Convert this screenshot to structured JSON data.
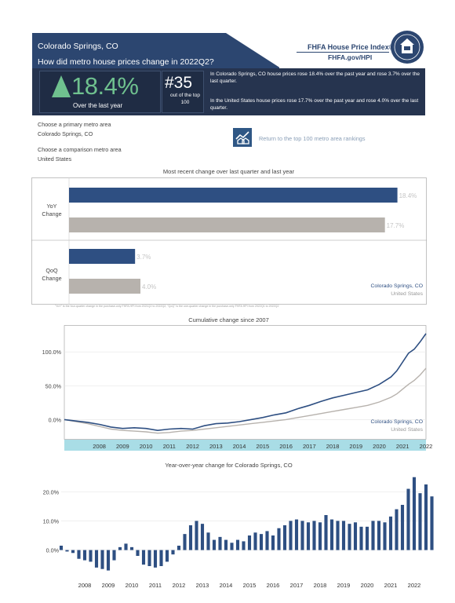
{
  "header": {
    "metro": "Colorado Springs, CO",
    "question": "How did metro house prices change in 2022Q2?"
  },
  "brand": {
    "title": "FHFA House Price Index®",
    "url": "FHFA.gov/HPI",
    "seal_icon": "fhfa-seal-icon"
  },
  "summary": {
    "yoy_value": "18.4%",
    "yoy_label": "Over the last year",
    "rank_value": "#35",
    "rank_label": "out of the top 100",
    "metro_text": "In Colorado Springs, CO house prices rose 18.4% over the past year and rose 3.7% over the last quarter.",
    "us_text": "In the United States house prices rose 17.7% over the past year and rose 4.0% over the last quarter."
  },
  "selectors": {
    "primary_label": "Choose a primary metro area",
    "primary_value": "Colorado Springs, CO",
    "comparison_label": "Choose a comparison metro area",
    "comparison_value": "United States",
    "return_link": "Return to the top 100 metro area rankings",
    "return_icon": "house-chart-icon"
  },
  "colors": {
    "primary": "#2e4f82",
    "comparison": "#b7b2ad",
    "axis_band": "#a9dde6",
    "header": "#2c4670"
  },
  "chart_data": [
    {
      "type": "bar",
      "title": "Most recent change over last quarter and last year",
      "categories": [
        "YoY Change",
        "QoQ Change"
      ],
      "series": [
        {
          "name": "Colorado Springs, CO",
          "values": [
            18.4,
            3.7
          ]
        },
        {
          "name": "United States",
          "values": [
            17.7,
            4.0
          ]
        }
      ],
      "value_labels": [
        [
          "18.4%",
          "3.7%"
        ],
        [
          "17.7%",
          "4.0%"
        ]
      ],
      "xlim": [
        0,
        20
      ],
      "legend": "bottom-right",
      "footnote": "\"YoY\" is the four-quarter change in the purchase-only FHFA HPI from 2021Q2 to 2022Q2; \"QoQ\" is the one-quarter change in the purchase-only FHFA HPI from 2022Q1 to 2022Q2"
    },
    {
      "type": "line",
      "title": "Cumulative change since 2007",
      "x_ticks": [
        "2008",
        "2009",
        "2010",
        "2011",
        "2012",
        "2013",
        "2014",
        "2015",
        "2016",
        "2017",
        "2018",
        "2019",
        "2020",
        "2021",
        "2022"
      ],
      "y_ticks": [
        "0.0%",
        "50.0%",
        "100.0%"
      ],
      "ylim": [
        -25,
        135
      ],
      "xlim": [
        2007.0,
        2022.5
      ],
      "legend": "bottom-right",
      "series": [
        {
          "name": "Colorado Springs, CO",
          "x": [
            2007.0,
            2007.5,
            2008.0,
            2008.5,
            2009.0,
            2009.5,
            2010.0,
            2010.5,
            2011.0,
            2011.5,
            2012.0,
            2012.5,
            2013.0,
            2013.5,
            2014.0,
            2014.5,
            2015.0,
            2015.5,
            2016.0,
            2016.5,
            2017.0,
            2017.5,
            2018.0,
            2018.5,
            2019.0,
            2019.5,
            2020.0,
            2020.5,
            2021.0,
            2021.25,
            2021.5,
            2021.75,
            2022.0,
            2022.25,
            2022.5
          ],
          "y": [
            0,
            -2,
            -4,
            -7,
            -11,
            -13,
            -12,
            -13,
            -16,
            -14,
            -13,
            -14,
            -9,
            -6,
            -5,
            -3,
            0,
            3,
            7,
            10,
            16,
            21,
            27,
            32,
            36,
            40,
            44,
            52,
            63,
            72,
            85,
            98,
            104,
            115,
            127
          ]
        },
        {
          "name": "United States",
          "x": [
            2007.0,
            2007.5,
            2008.0,
            2008.5,
            2009.0,
            2009.5,
            2010.0,
            2010.5,
            2011.0,
            2011.5,
            2012.0,
            2012.5,
            2013.0,
            2013.5,
            2014.0,
            2014.5,
            2015.0,
            2015.5,
            2016.0,
            2016.5,
            2017.0,
            2017.5,
            2018.0,
            2018.5,
            2019.0,
            2019.5,
            2020.0,
            2020.5,
            2021.0,
            2021.25,
            2021.5,
            2021.75,
            2022.0,
            2022.25,
            2022.5
          ],
          "y": [
            0,
            -3,
            -6,
            -10,
            -14,
            -16,
            -17,
            -18,
            -20,
            -19,
            -17,
            -16,
            -14,
            -12,
            -10,
            -8,
            -6,
            -4,
            -2,
            0,
            3,
            6,
            9,
            12,
            15,
            18,
            21,
            26,
            33,
            38,
            45,
            52,
            58,
            66,
            76
          ]
        }
      ]
    },
    {
      "type": "bar",
      "title": "Year-over-year change for Colorado Springs, CO",
      "x_ticks": [
        "2008",
        "2009",
        "2010",
        "2011",
        "2012",
        "2013",
        "2014",
        "2015",
        "2016",
        "2017",
        "2018",
        "2019",
        "2020",
        "2021",
        "2022"
      ],
      "y_ticks": [
        "0.0%",
        "10.0%",
        "20.0%"
      ],
      "ylim": [
        -9,
        26
      ],
      "series": [
        {
          "name": "Colorado Springs, CO",
          "start_year": 2007.5,
          "values": [
            1.5,
            -0.5,
            -1,
            -3,
            -3.5,
            -4,
            -6,
            -6.5,
            -7,
            -3.5,
            1,
            2.2,
            1,
            -2,
            -5,
            -5.5,
            -6,
            -5.5,
            -4,
            -1.5,
            1.5,
            5.5,
            8.5,
            10,
            9,
            6,
            3.5,
            4.5,
            3.5,
            2.5,
            3.5,
            3,
            5,
            6,
            5.5,
            6.5,
            5,
            7.5,
            8.5,
            10,
            10.5,
            10,
            9.5,
            10,
            9.5,
            12,
            10.5,
            10,
            10,
            9,
            9.5,
            8,
            8,
            10,
            10,
            9.5,
            11.5,
            14,
            15.5,
            21,
            25,
            19.5,
            22.5,
            18.4
          ]
        }
      ]
    }
  ]
}
